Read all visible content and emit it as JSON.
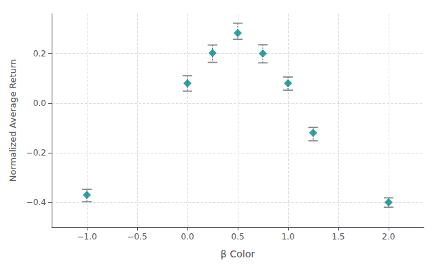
{
  "chart_data": {
    "type": "scatter",
    "x": [
      -1.0,
      0.0,
      0.25,
      0.5,
      0.75,
      1.0,
      1.25,
      2.0
    ],
    "values": [
      -0.37,
      0.08,
      0.202,
      0.282,
      0.2,
      0.08,
      -0.12,
      -0.4
    ],
    "yerr_upper": [
      0.022,
      0.03,
      0.032,
      0.04,
      0.035,
      0.025,
      0.022,
      0.018
    ],
    "yerr_lower": [
      0.028,
      0.032,
      0.038,
      0.025,
      0.038,
      0.028,
      0.032,
      0.02
    ],
    "color": "#008B8B",
    "marker": "diamond",
    "xlabel": "β Color",
    "ylabel": "Normalized Average Return",
    "xlim": [
      -1.35,
      2.35
    ],
    "ylim": [
      -0.5,
      0.36
    ],
    "xticks": [
      {
        "value": -1.0,
        "label": "−1.0"
      },
      {
        "value": -0.5,
        "label": "−0.5"
      },
      {
        "value": 0.0,
        "label": "0.0"
      },
      {
        "value": 0.5,
        "label": "0.5"
      },
      {
        "value": 1.0,
        "label": "1.0"
      },
      {
        "value": 1.5,
        "label": "1.5"
      },
      {
        "value": 2.0,
        "label": "2.0"
      }
    ],
    "yticks": [
      {
        "value": -0.4,
        "label": "−0.4"
      },
      {
        "value": -0.2,
        "label": "−0.2"
      },
      {
        "value": 0.0,
        "label": "0.0"
      },
      {
        "value": 0.2,
        "label": "0.2"
      }
    ],
    "grid": true
  }
}
